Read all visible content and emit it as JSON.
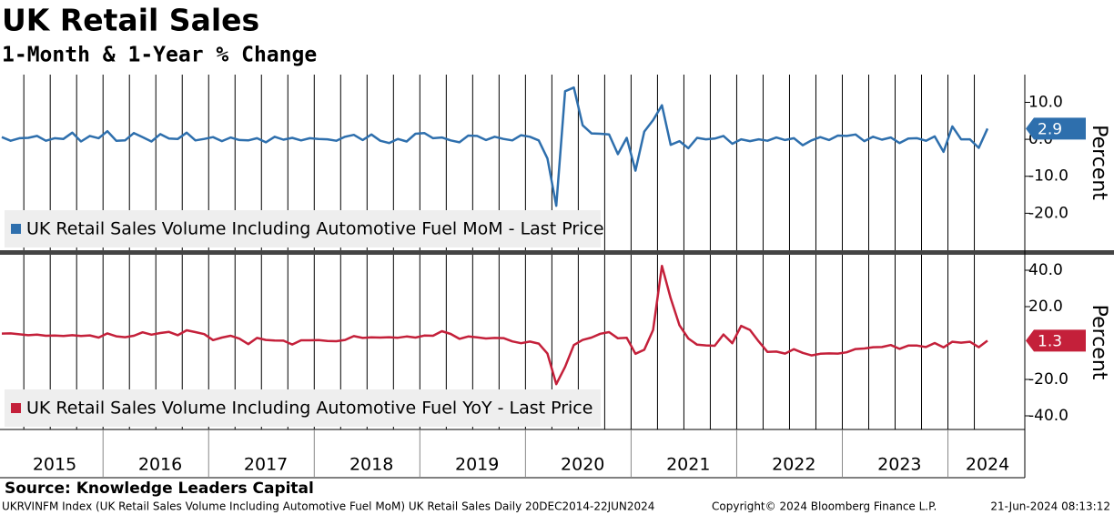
{
  "title": "UK Retail Sales",
  "subtitle": "1-Month & 1-Year % Change",
  "source": "Source: Knowledge Leaders Capital",
  "footer": {
    "index": "UKRVINFM Index (UK Retail Sales Volume Including Automotive Fuel MoM) UK Retail Sales  Daily 20DEC2014-22JUN2024",
    "copyright": "Copyright© 2024 Bloomberg Finance L.P.",
    "timestamp": "21-Jun-2024 08:13:12"
  },
  "chart_data": [
    {
      "type": "line",
      "ylabel": "Percent",
      "x_grid": true,
      "ylim": [
        -30,
        17.5
      ],
      "yticks": [
        {
          "value": 10,
          "label": "10.0"
        },
        {
          "value": 0,
          "label": "0.0"
        },
        {
          "value": -10,
          "label": "-10.0"
        },
        {
          "value": -20,
          "label": "-20.0"
        }
      ],
      "series": [
        {
          "name": "UK Retail Sales Volume Including Automotive Fuel MoM - Last Price",
          "color": "#2e6fad",
          "values": [
            0.6,
            -0.4,
            0.3,
            0.4,
            0.9,
            -0.4,
            0.3,
            0.1,
            1.8,
            -0.6,
            0.9,
            0.3,
            2.2,
            -0.4,
            -0.3,
            1.7,
            0.6,
            -0.6,
            1.4,
            0.2,
            0.1,
            1.8,
            -0.3,
            0.1,
            0.6,
            -0.5,
            0.5,
            -0.2,
            -0.3,
            0.3,
            -0.8,
            0.7,
            -0.1,
            0.4,
            -0.3,
            0.3,
            0.1,
            0.0,
            -0.4,
            0.7,
            1.2,
            -0.2,
            1.3,
            -0.4,
            -1.0,
            0.1,
            -0.6,
            1.5,
            1.7,
            0.3,
            0.5,
            -0.3,
            -0.8,
            1.0,
            0.9,
            -0.2,
            0.7,
            0.1,
            -0.3,
            1.1,
            0.7,
            -0.3,
            -5.2,
            -18.0,
            13.0,
            14.0,
            3.8,
            1.6,
            1.5,
            1.3,
            -4.0,
            0.4,
            -8.5,
            2.1,
            5.2,
            9.2,
            -1.5,
            -0.5,
            -2.4,
            0.4,
            0.0,
            0.2,
            0.9,
            -1.2,
            0.0,
            -0.5,
            0.0,
            -0.4,
            0.5,
            -0.2,
            0.3,
            -1.6,
            -0.3,
            0.6,
            -0.2,
            1.0,
            0.9,
            1.3,
            -0.5,
            0.7,
            -0.1,
            0.5,
            -1.0,
            0.2,
            0.3,
            -0.4,
            0.8,
            -3.4,
            3.5,
            0.0,
            0.0,
            -2.3,
            2.9
          ]
        }
      ]
    },
    {
      "type": "line",
      "ylabel": "Percent",
      "x_grid": true,
      "ylim": [
        -47.5,
        48.5
      ],
      "yticks": [
        {
          "value": 40,
          "label": "40.0"
        },
        {
          "value": 20,
          "label": "20.0"
        },
        {
          "value": -20,
          "label": "-20.0"
        },
        {
          "value": -40,
          "label": "-40.0"
        }
      ],
      "categories": [
        null,
        null,
        null,
        null,
        null,
        null,
        "2015",
        null,
        null,
        null,
        null,
        null,
        null,
        null,
        null,
        null,
        null,
        null,
        "2016",
        null,
        null,
        null,
        null,
        null,
        null,
        null,
        null,
        null,
        null,
        null,
        "2017",
        null,
        null,
        null,
        null,
        null,
        null,
        null,
        null,
        null,
        null,
        null,
        "2018",
        null,
        null,
        null,
        null,
        null,
        null,
        null,
        null,
        null,
        null,
        null,
        "2019",
        null,
        null,
        null,
        null,
        null,
        null,
        null,
        null,
        null,
        null,
        null,
        "2020",
        null,
        null,
        null,
        null,
        null,
        null,
        null,
        null,
        null,
        null,
        null,
        "2021",
        null,
        null,
        null,
        null,
        null,
        null,
        null,
        null,
        null,
        null,
        null,
        "2022",
        null,
        null,
        null,
        null,
        null,
        null,
        null,
        null,
        null,
        null,
        null,
        "2023",
        null,
        null,
        null,
        null,
        null,
        null,
        null,
        null,
        null,
        "2024"
      ],
      "series": [
        {
          "name": "UK Retail Sales Volume Including Automotive Fuel YoY - Last Price",
          "color": "#c4203a",
          "values": [
            5.2,
            5.3,
            4.8,
            4.3,
            4.6,
            4.0,
            4.1,
            3.9,
            4.3,
            3.9,
            4.2,
            3.0,
            5.3,
            3.7,
            3.2,
            4.0,
            5.9,
            4.6,
            5.5,
            6.1,
            4.3,
            7.0,
            6.0,
            4.9,
            1.6,
            3.0,
            4.0,
            2.4,
            -0.6,
            2.8,
            1.7,
            1.4,
            1.3,
            -0.8,
            1.5,
            1.5,
            1.6,
            1.1,
            1.0,
            1.7,
            3.8,
            2.8,
            3.1,
            3.0,
            3.2,
            2.9,
            3.6,
            3.0,
            4.1,
            4.0,
            6.5,
            5.0,
            2.3,
            3.6,
            3.1,
            2.5,
            2.8,
            2.7,
            0.9,
            -0.1,
            0.8,
            -0.3,
            -5.8,
            -22.6,
            -13.1,
            -1.1,
            1.7,
            3.0,
            5.1,
            6.0,
            2.6,
            2.9,
            -5.9,
            -3.7,
            7.2,
            42.4,
            24.6,
            9.7,
            2.5,
            -0.9,
            -1.3,
            -1.5,
            4.7,
            -0.1,
            9.4,
            7.2,
            0.9,
            -4.9,
            -4.7,
            -5.8,
            -3.4,
            -5.4,
            -6.8,
            -5.9,
            -5.7,
            -5.8,
            -5.1,
            -3.3,
            -3.0,
            -2.3,
            -2.2,
            -1.1,
            -3.2,
            -1.4,
            -1.4,
            -2.2,
            0.0,
            -2.4,
            0.7,
            0.2,
            0.7,
            -2.3,
            1.3
          ]
        }
      ]
    }
  ]
}
